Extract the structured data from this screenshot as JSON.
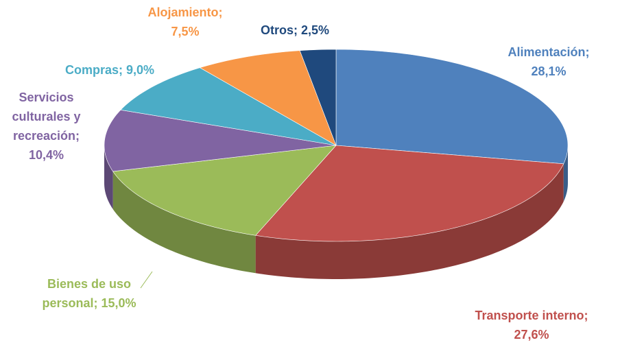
{
  "chart_data": {
    "type": "pie",
    "categories": [
      "Alimentación",
      "Transporte interno",
      "Bienes de uso personal",
      "Servicios culturales y recreación",
      "Compras",
      "Alojamiento",
      "Otros"
    ],
    "values": [
      28.1,
      27.6,
      15.0,
      10.4,
      9.0,
      7.5,
      2.5
    ],
    "value_labels": [
      "28,1%",
      "27,6%",
      "15,0%",
      "10,4%",
      "9,0%",
      "7,5%",
      "2,5%"
    ],
    "label_separator": ";",
    "colors": [
      "#4f81bd",
      "#c0504d",
      "#9bbb59",
      "#8064a2",
      "#4bacc6",
      "#f79646",
      "#1f497d"
    ]
  }
}
